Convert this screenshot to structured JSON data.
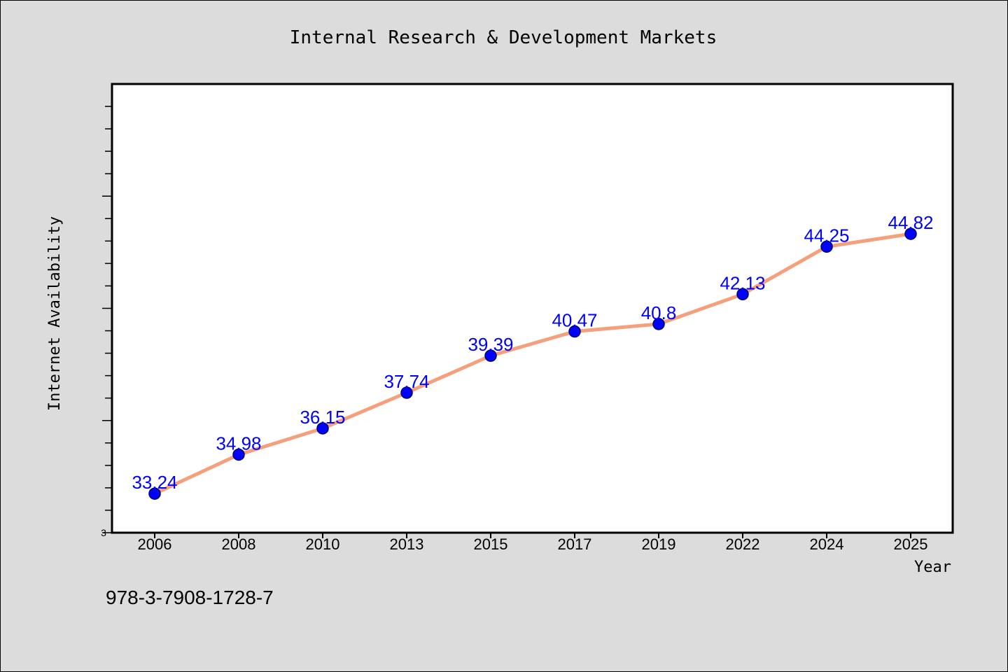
{
  "colors": {
    "line": "#f4a07c",
    "marker": "#0000ff",
    "marker_edge": "#000066",
    "label": "#0000ff",
    "plot_bg": "#ffffff",
    "page_bg": "#dcdcdc"
  },
  "footnote": "978-3-7908-1728-7",
  "chart_data": {
    "type": "line",
    "title": "Internal Research & Development Markets",
    "xlabel": "Year",
    "ylabel": "Internet Availability",
    "categories": [
      "2006",
      "2008",
      "2010",
      "2013",
      "2015",
      "2017",
      "2019",
      "2022",
      "2024",
      "2025"
    ],
    "series": [
      {
        "values": [
          33.24,
          34.98,
          36.15,
          37.74,
          39.39,
          40.47,
          40.8,
          42.13,
          44.25,
          44.82
        ],
        "labels": [
          "33.24",
          "34.98",
          "36.15",
          "37.74",
          "39.39",
          "40.47",
          "40.8",
          "42.13",
          "44.25",
          "44.82"
        ]
      }
    ],
    "y_axis_visible_tick_label": "3",
    "ylim": [
      31.5,
      51.5
    ],
    "grid": false,
    "legend": "none"
  }
}
